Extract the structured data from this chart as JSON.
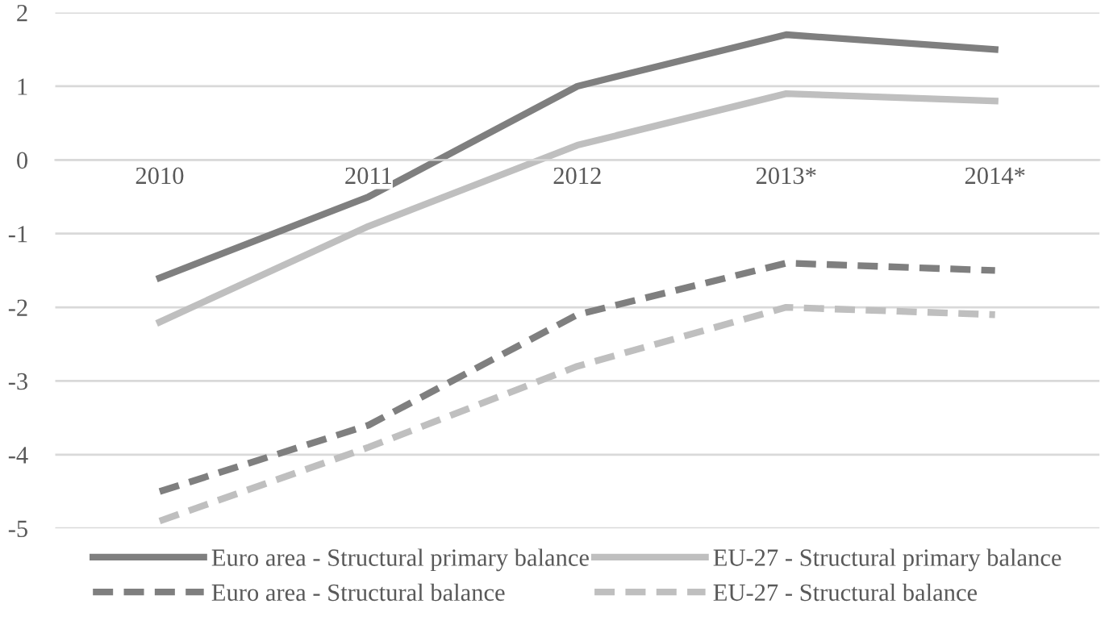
{
  "chart_data": {
    "type": "line",
    "categories": [
      "2010",
      "2011",
      "2012",
      "2013*",
      "2014*"
    ],
    "ylim": [
      -5,
      2
    ],
    "yticks": [
      -5,
      -4,
      -3,
      -2,
      -1,
      0,
      1,
      2
    ],
    "grid": "y",
    "legend": "bottom",
    "series": [
      {
        "name": "Euro area - Structural primary balance",
        "color": "#7f7f7f",
        "line_style": "solid",
        "values": [
          -1.6,
          -0.5,
          1.0,
          1.7,
          1.5
        ]
      },
      {
        "name": "EU-27 - Structural primary balance",
        "color": "#bfbfbf",
        "line_style": "solid",
        "values": [
          -2.2,
          -0.9,
          0.2,
          0.9,
          0.8
        ]
      },
      {
        "name": "Euro area - Structural balance",
        "color": "#7f7f7f",
        "line_style": "dashed",
        "values": [
          -4.5,
          -3.6,
          -2.1,
          -1.4,
          -1.5
        ]
      },
      {
        "name": "EU-27 - Structural balance",
        "color": "#bfbfbf",
        "line_style": "dashed",
        "values": [
          -4.9,
          -3.9,
          -2.8,
          -2.0,
          -2.1
        ]
      }
    ]
  }
}
